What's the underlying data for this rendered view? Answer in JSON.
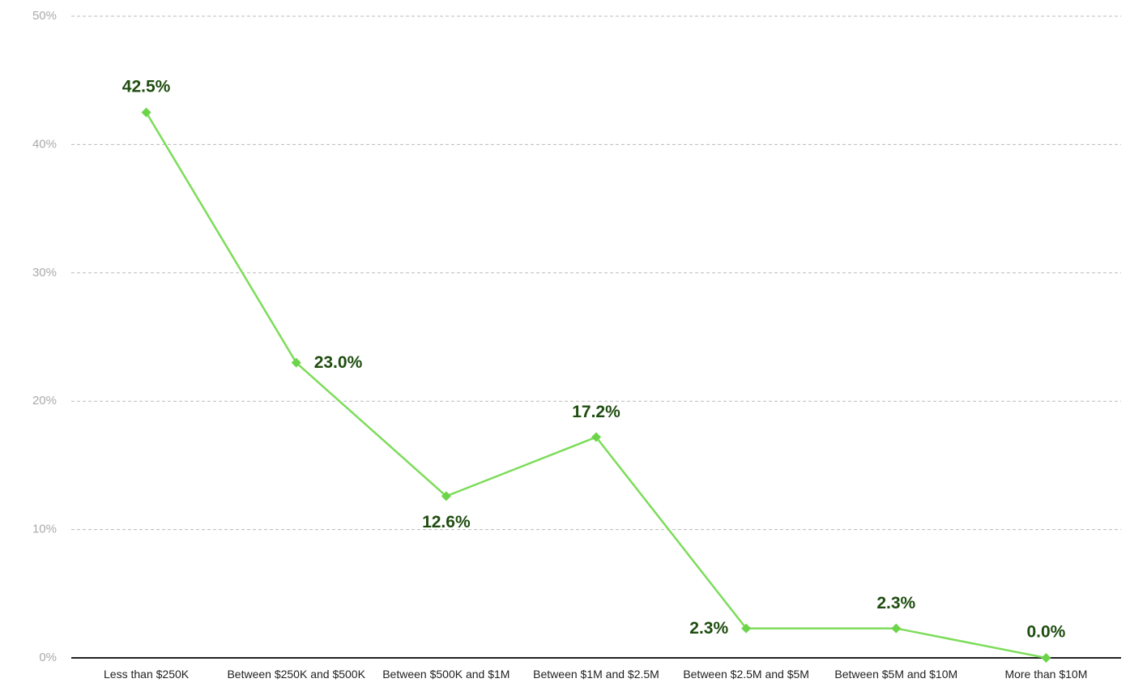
{
  "chart_data": {
    "type": "line",
    "categories": [
      "Less than $250K",
      "Between $250K and $500K",
      "Between $500K and $1M",
      "Between $1M and $2.5M",
      "Between $2.5M and $5M",
      "Between $5M and $10M",
      "More than $10M"
    ],
    "values": [
      42.5,
      23.0,
      12.6,
      17.2,
      2.3,
      2.3,
      0.0
    ],
    "value_labels": [
      "42.5%",
      "23.0%",
      "12.6%",
      "17.2%",
      "2.3%",
      "2.3%",
      "0.0%"
    ],
    "color": "#7ddc5a",
    "ylim": [
      0,
      50
    ],
    "yticks": [
      {
        "value": 0,
        "label": "0%"
      },
      {
        "value": 10,
        "label": "10%"
      },
      {
        "value": 20,
        "label": "20%"
      },
      {
        "value": 30,
        "label": "30%"
      },
      {
        "value": 40,
        "label": "40%"
      },
      {
        "value": 50,
        "label": "50%"
      }
    ],
    "grid": true
  }
}
